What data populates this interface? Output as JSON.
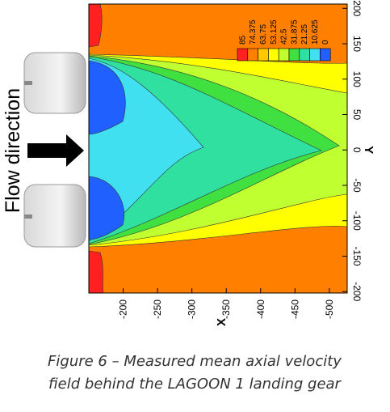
{
  "chart_data": {
    "type": "contour",
    "xlabel": "X",
    "ylabel": "Y",
    "xlim": [
      -150,
      -526
    ],
    "ylim": [
      -202,
      206
    ],
    "xticks": [
      -200,
      -250,
      -300,
      -350,
      -400,
      -450,
      -500
    ],
    "yticks": [
      200,
      150,
      100,
      50,
      0,
      -50,
      -100,
      -150,
      -200
    ],
    "levels": [
      85,
      74.375,
      63.75,
      53.125,
      42.5,
      31.875,
      21.25,
      10.625,
      0
    ],
    "colors": [
      "#ff2020",
      "#ff8000",
      "#ffc800",
      "#ffff00",
      "#c0ff30",
      "#40e040",
      "#30e0a0",
      "#40e0f0",
      "#2060ff"
    ],
    "annotation": "Flow direction",
    "caption": [
      "Figure 6 – Measured mean axial velocity",
      "field behind the LAGOON 1 landing gear"
    ]
  }
}
